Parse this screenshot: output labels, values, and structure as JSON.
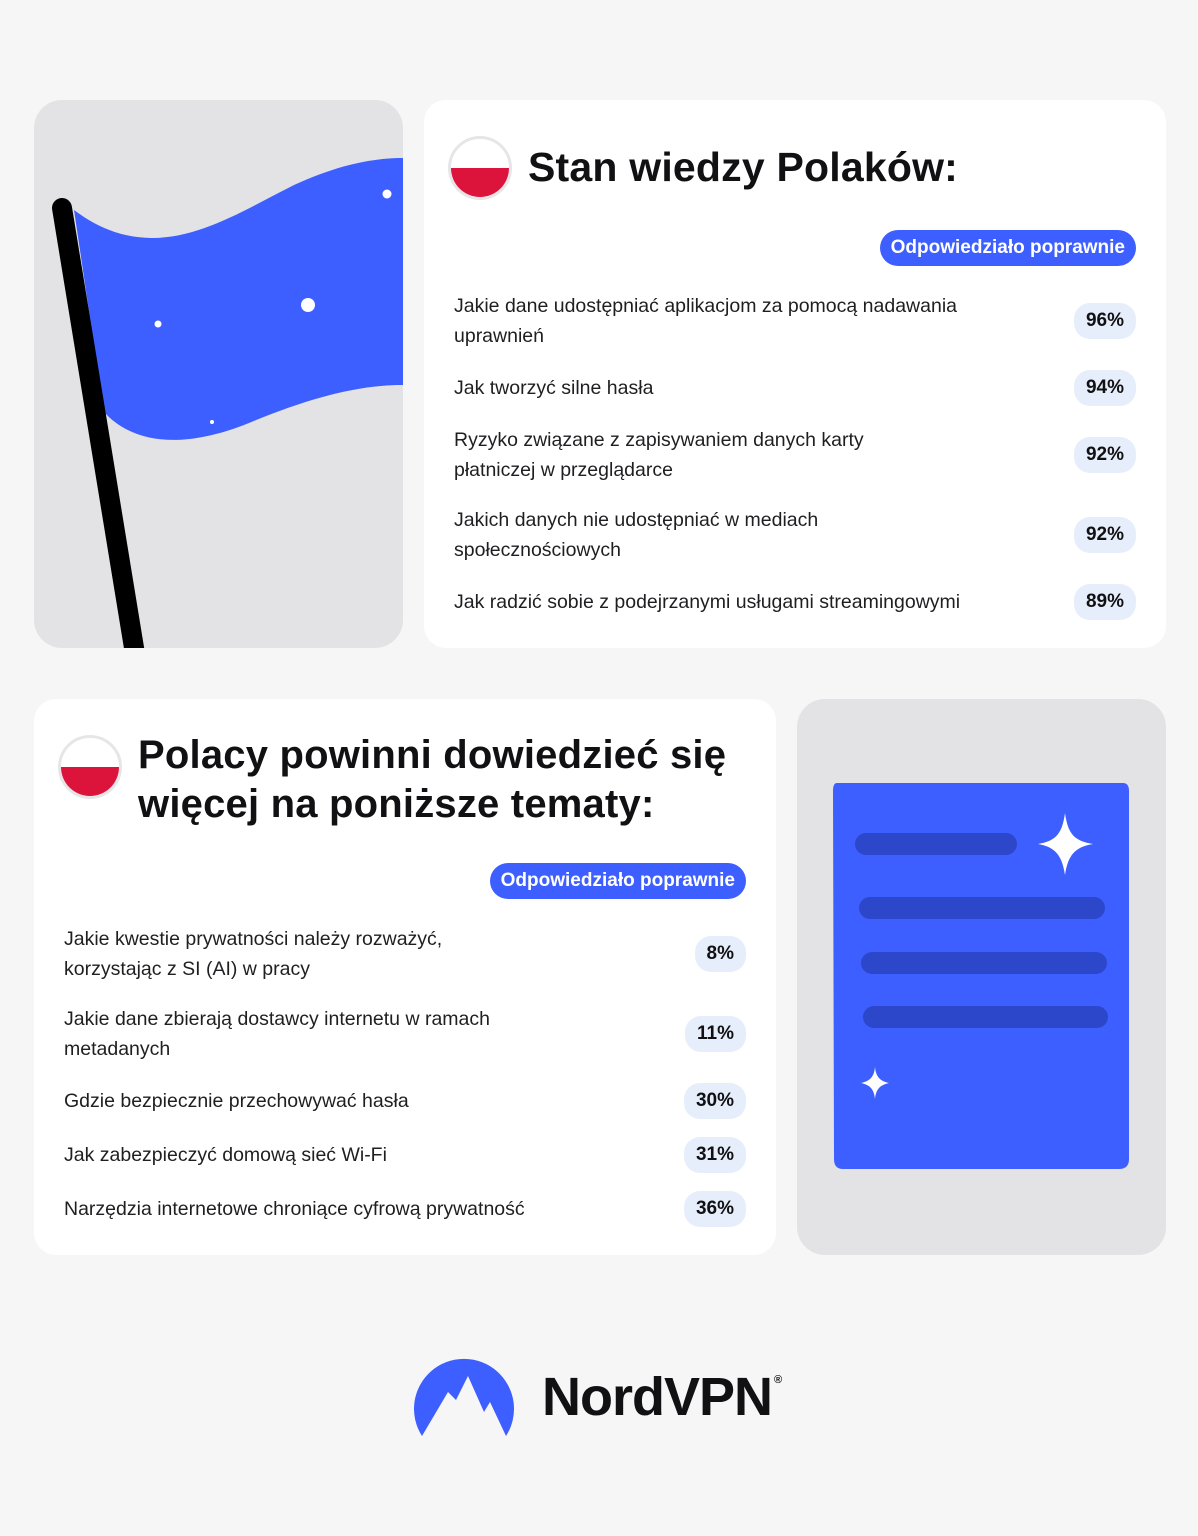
{
  "colors": {
    "accent": "#3e5fff",
    "flag_red": "#dc143c",
    "pole": "#000000"
  },
  "section1": {
    "title": "Stan wiedzy Polaków:",
    "badge_label": "Odpowiedziało poprawnie",
    "items": [
      {
        "question": "Jakie dane udostępniać aplikacjom za pomocą nadawania uprawnień",
        "value": "96%"
      },
      {
        "question": "Jak tworzyć silne hasła",
        "value": "94%"
      },
      {
        "question": "Ryzyko związane z zapisywaniem danych karty płatniczej w przeglądarce",
        "value": "92%"
      },
      {
        "question": "Jakich danych nie udostępniać w mediach społecznościowych",
        "value": "92%"
      },
      {
        "question": "Jak radzić sobie z podejrzanymi usługami streamingowymi",
        "value": "89%"
      }
    ]
  },
  "section2": {
    "title_line1": "Polacy powinni dowiedzieć się",
    "title_line2": "więcej na poniższe tematy:",
    "badge_label": "Odpowiedziało poprawnie",
    "items": [
      {
        "question": "Jakie kwestie prywatności należy rozważyć, korzystając z SI (AI) w pracy",
        "value": "8%"
      },
      {
        "question": "Jakie dane zbierają dostawcy internetu w ramach metadanych",
        "value": "11%"
      },
      {
        "question": "Gdzie bezpiecznie przechowywać hasła",
        "value": "30%"
      },
      {
        "question": "Jak zabezpieczyć domową sieć Wi-Fi",
        "value": "31%"
      },
      {
        "question": "Narzędzia internetowe chroniące cyfrową prywatność",
        "value": "36%"
      }
    ]
  },
  "logo": {
    "name": "NordVPN",
    "registered": "®"
  }
}
